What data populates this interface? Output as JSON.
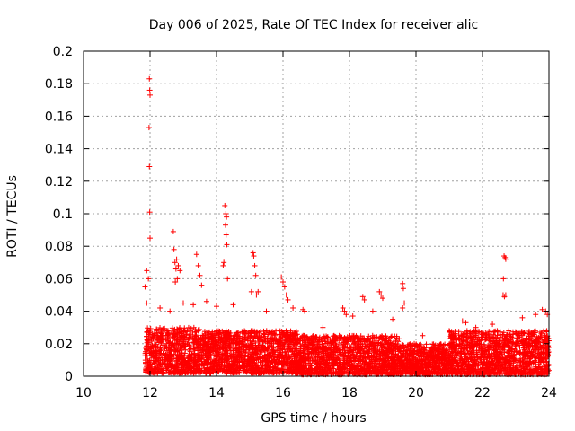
{
  "chart_data": {
    "type": "scatter",
    "title": "Day 006 of 2025, Rate Of TEC Index for receiver alic",
    "xlabel": "GPS time / hours",
    "ylabel": "ROTI / TECUs",
    "xlim": [
      10,
      24
    ],
    "ylim": [
      0,
      0.2
    ],
    "x_ticks": [
      10,
      12,
      14,
      16,
      18,
      20,
      22,
      24
    ],
    "x_tick_labels": [
      "10",
      "12",
      "14",
      "16",
      "18",
      "20",
      "22",
      "24"
    ],
    "y_ticks": [
      0,
      0.02,
      0.04,
      0.06,
      0.08,
      0.1,
      0.12,
      0.14,
      0.16,
      0.18,
      0.2
    ],
    "y_tick_labels": [
      "0",
      "0.02",
      "0.04",
      "0.06",
      "0.08",
      "0.1",
      "0.12",
      "0.14",
      "0.16",
      "0.18",
      "0.2"
    ],
    "grid": true,
    "marker": "+",
    "color": "#ff0000",
    "series": [
      {
        "name": "ROTI",
        "points": [
          [
            11.98,
            0.183
          ],
          [
            11.99,
            0.176
          ],
          [
            12.0,
            0.173
          ],
          [
            11.97,
            0.153
          ],
          [
            11.98,
            0.129
          ],
          [
            11.99,
            0.101
          ],
          [
            12.0,
            0.085
          ],
          [
            11.9,
            0.065
          ],
          [
            11.85,
            0.055
          ],
          [
            11.95,
            0.06
          ],
          [
            12.7,
            0.089
          ],
          [
            12.72,
            0.078
          ],
          [
            12.75,
            0.07
          ],
          [
            12.8,
            0.072
          ],
          [
            12.85,
            0.068
          ],
          [
            12.78,
            0.066
          ],
          [
            12.82,
            0.06
          ],
          [
            12.9,
            0.065
          ],
          [
            12.76,
            0.058
          ],
          [
            13.4,
            0.075
          ],
          [
            13.45,
            0.068
          ],
          [
            13.5,
            0.062
          ],
          [
            13.55,
            0.056
          ],
          [
            14.25,
            0.105
          ],
          [
            14.28,
            0.1
          ],
          [
            14.3,
            0.098
          ],
          [
            14.27,
            0.093
          ],
          [
            14.29,
            0.087
          ],
          [
            14.31,
            0.081
          ],
          [
            14.22,
            0.07
          ],
          [
            14.2,
            0.068
          ],
          [
            14.33,
            0.06
          ],
          [
            15.1,
            0.076
          ],
          [
            15.12,
            0.074
          ],
          [
            15.15,
            0.068
          ],
          [
            15.18,
            0.062
          ],
          [
            15.05,
            0.052
          ],
          [
            15.2,
            0.05
          ],
          [
            15.25,
            0.052
          ],
          [
            15.95,
            0.061
          ],
          [
            16.0,
            0.058
          ],
          [
            16.05,
            0.055
          ],
          [
            16.1,
            0.05
          ],
          [
            16.15,
            0.047
          ],
          [
            16.6,
            0.041
          ],
          [
            16.65,
            0.04
          ],
          [
            17.8,
            0.042
          ],
          [
            17.85,
            0.04
          ],
          [
            17.9,
            0.038
          ],
          [
            18.4,
            0.049
          ],
          [
            18.45,
            0.047
          ],
          [
            18.9,
            0.052
          ],
          [
            18.95,
            0.05
          ],
          [
            19.0,
            0.048
          ],
          [
            19.6,
            0.057
          ],
          [
            19.62,
            0.054
          ],
          [
            19.65,
            0.045
          ],
          [
            19.6,
            0.042
          ],
          [
            21.4,
            0.034
          ],
          [
            21.5,
            0.033
          ],
          [
            22.65,
            0.074
          ],
          [
            22.68,
            0.073
          ],
          [
            22.7,
            0.072
          ],
          [
            22.63,
            0.06
          ],
          [
            22.62,
            0.05
          ],
          [
            22.66,
            0.049
          ],
          [
            22.7,
            0.05
          ],
          [
            23.8,
            0.041
          ],
          [
            23.9,
            0.04
          ],
          [
            23.95,
            0.038
          ],
          [
            11.9,
            0.045
          ],
          [
            12.3,
            0.042
          ],
          [
            12.6,
            0.04
          ],
          [
            13.0,
            0.045
          ],
          [
            13.3,
            0.044
          ],
          [
            13.7,
            0.046
          ],
          [
            14.0,
            0.043
          ],
          [
            14.5,
            0.044
          ],
          [
            15.5,
            0.04
          ],
          [
            16.3,
            0.042
          ],
          [
            17.2,
            0.03
          ],
          [
            18.1,
            0.037
          ],
          [
            18.7,
            0.04
          ],
          [
            19.3,
            0.035
          ],
          [
            20.2,
            0.025
          ],
          [
            21.0,
            0.028
          ],
          [
            21.8,
            0.03
          ],
          [
            22.3,
            0.032
          ],
          [
            23.2,
            0.036
          ],
          [
            23.6,
            0.038
          ]
        ]
      }
    ],
    "band": {
      "description": "dense scatter band of ROTI values",
      "segments": [
        {
          "x_from": 11.85,
          "x_to": 13.5,
          "y_min": 0.002,
          "y_max": 0.03
        },
        {
          "x_from": 13.5,
          "x_to": 16.5,
          "y_min": 0.002,
          "y_max": 0.028
        },
        {
          "x_from": 16.5,
          "x_to": 19.5,
          "y_min": 0.001,
          "y_max": 0.025
        },
        {
          "x_from": 19.5,
          "x_to": 21.0,
          "y_min": 0.001,
          "y_max": 0.02
        },
        {
          "x_from": 21.0,
          "x_to": 24.0,
          "y_min": 0.001,
          "y_max": 0.028
        }
      ]
    }
  }
}
